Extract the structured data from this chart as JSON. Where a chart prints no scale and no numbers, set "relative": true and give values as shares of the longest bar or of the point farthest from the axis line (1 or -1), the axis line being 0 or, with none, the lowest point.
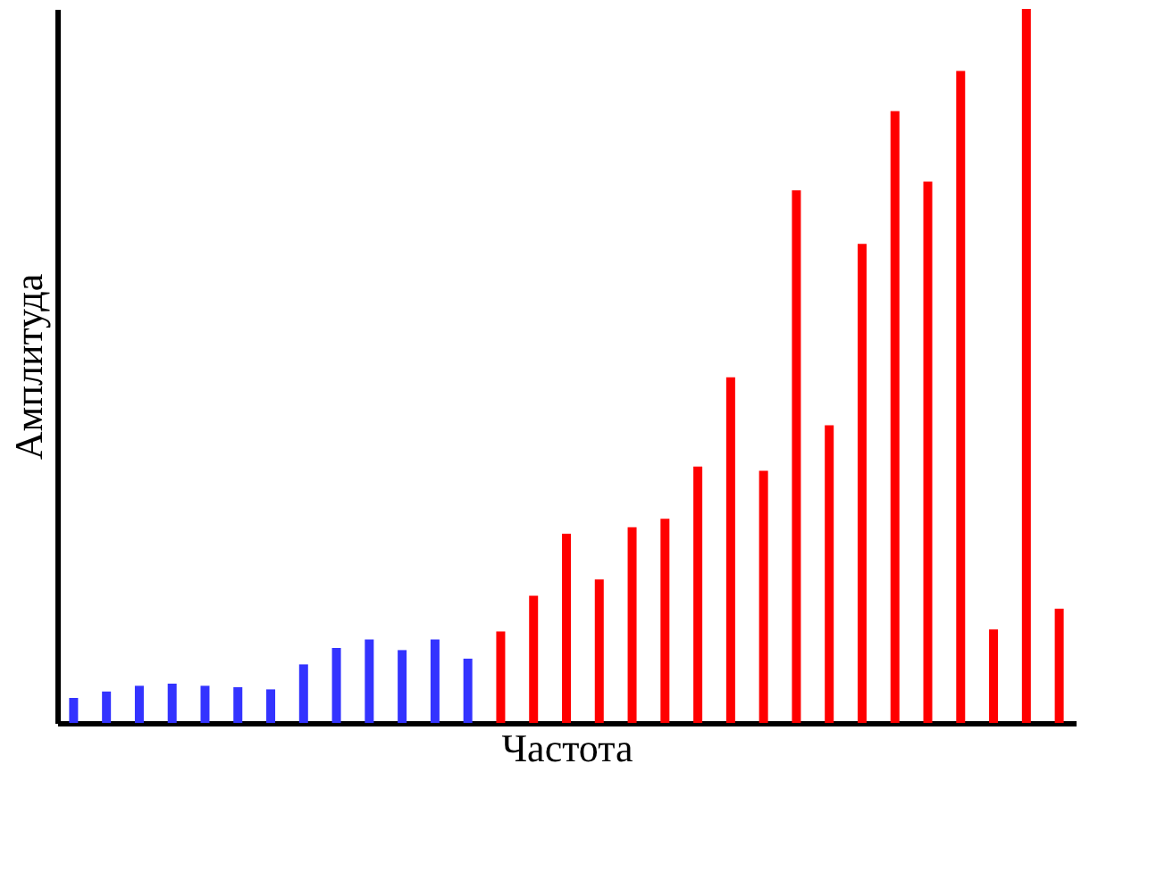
{
  "chart_data": {
    "type": "bar",
    "relative": true,
    "xlabel": "Частота",
    "ylabel": "Амплитуда",
    "tick_labels": false,
    "grid": false,
    "categories": [
      null,
      null,
      null,
      null,
      null,
      null,
      null,
      null,
      null,
      null,
      null,
      null,
      null,
      null,
      null,
      null,
      null,
      null,
      null,
      null,
      null,
      null,
      null,
      null,
      null,
      null,
      null,
      null,
      null,
      null,
      null
    ],
    "values": [
      0.035,
      0.044,
      0.052,
      0.055,
      0.052,
      0.05,
      0.047,
      0.082,
      0.105,
      0.117,
      0.102,
      0.117,
      0.09,
      0.128,
      0.178,
      0.265,
      0.201,
      0.274,
      0.286,
      0.359,
      0.484,
      0.353,
      0.746,
      0.417,
      0.671,
      0.857,
      0.758,
      0.913,
      0.131,
      1,
      0.16
    ],
    "colors": [
      "#3333ff",
      "#3333ff",
      "#3333ff",
      "#3333ff",
      "#3333ff",
      "#3333ff",
      "#3333ff",
      "#3333ff",
      "#3333ff",
      "#3333ff",
      "#3333ff",
      "#3333ff",
      "#3333ff",
      "#ff0000",
      "#ff0000",
      "#ff0000",
      "#ff0000",
      "#ff0000",
      "#ff0000",
      "#ff0000",
      "#ff0000",
      "#ff0000",
      "#ff0000",
      "#ff0000",
      "#ff0000",
      "#ff0000",
      "#ff0000",
      "#ff0000",
      "#ff0000",
      "#ff0000",
      "#ff0000"
    ]
  }
}
